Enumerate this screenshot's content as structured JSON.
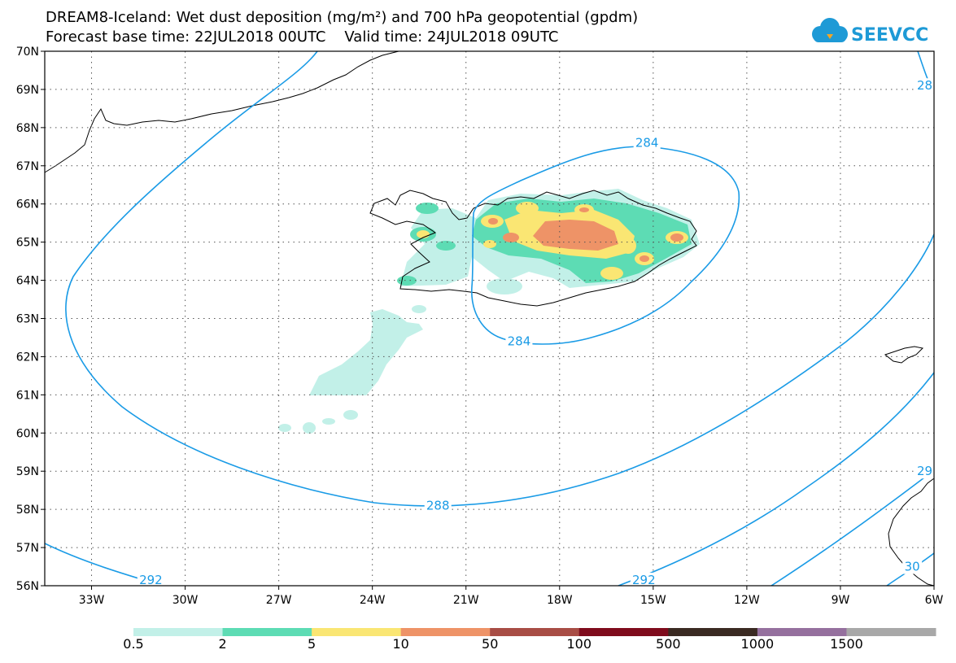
{
  "title": {
    "line1": "DREAM8-Iceland: Wet dust deposition (mg/m²) and 700 hPa geopotential (gpdm)",
    "line2": "Forecast base time: 22JUL2018 00UTC    Valid time: 24JUL2018 09UTC"
  },
  "logo": {
    "text": "SEEVCCC",
    "color": "#1e9ad6"
  },
  "map": {
    "lon_range": [
      -34.5,
      -6
    ],
    "lat_range": [
      56,
      70
    ],
    "lon_ticks": [
      {
        "value": -33,
        "label": "33W"
      },
      {
        "value": -30,
        "label": "30W"
      },
      {
        "value": -27,
        "label": "27W"
      },
      {
        "value": -24,
        "label": "24W"
      },
      {
        "value": -21,
        "label": "21W"
      },
      {
        "value": -18,
        "label": "18W"
      },
      {
        "value": -15,
        "label": "15W"
      },
      {
        "value": -12,
        "label": "12W"
      },
      {
        "value": -9,
        "label": "9W"
      },
      {
        "value": -6,
        "label": "6W"
      }
    ],
    "lat_ticks": [
      {
        "value": 70,
        "label": "70N"
      },
      {
        "value": 69,
        "label": "69N"
      },
      {
        "value": 68,
        "label": "68N"
      },
      {
        "value": 67,
        "label": "67N"
      },
      {
        "value": 66,
        "label": "66N"
      },
      {
        "value": 65,
        "label": "65N"
      },
      {
        "value": 64,
        "label": "64N"
      },
      {
        "value": 63,
        "label": "63N"
      },
      {
        "value": 62,
        "label": "62N"
      },
      {
        "value": 61,
        "label": "61N"
      },
      {
        "value": 60,
        "label": "60N"
      },
      {
        "value": 59,
        "label": "59N"
      },
      {
        "value": 58,
        "label": "58N"
      },
      {
        "value": 57,
        "label": "57N"
      },
      {
        "value": 56,
        "label": "56N"
      }
    ],
    "gridlines": true,
    "contour_color": "#1a9be6",
    "contour_labels": [
      {
        "text": "284",
        "lon": -15.2,
        "lat": 67.6
      },
      {
        "text": "284",
        "lon": -19.3,
        "lat": 62.4
      },
      {
        "text": "288",
        "lon": -21.9,
        "lat": 58.1
      },
      {
        "text": "292",
        "lon": -31.1,
        "lat": 56.15
      },
      {
        "text": "292",
        "lon": -15.3,
        "lat": 56.15
      },
      {
        "text": "28",
        "lon": -6.3,
        "lat": 69.1
      },
      {
        "text": "29",
        "lon": -6.3,
        "lat": 59.0
      },
      {
        "text": "30",
        "lon": -6.7,
        "lat": 56.5
      }
    ]
  },
  "colorbar": {
    "colors": [
      "#c2f0e8",
      "#5ddcb4",
      "#fae673",
      "#ee9367",
      "#a84d45",
      "#7f0b1c",
      "#3a2a22",
      "#95709e",
      "#a8a8a8"
    ],
    "labels": [
      "0.5",
      "2",
      "5",
      "10",
      "50",
      "100",
      "500",
      "1000",
      "1500"
    ]
  }
}
